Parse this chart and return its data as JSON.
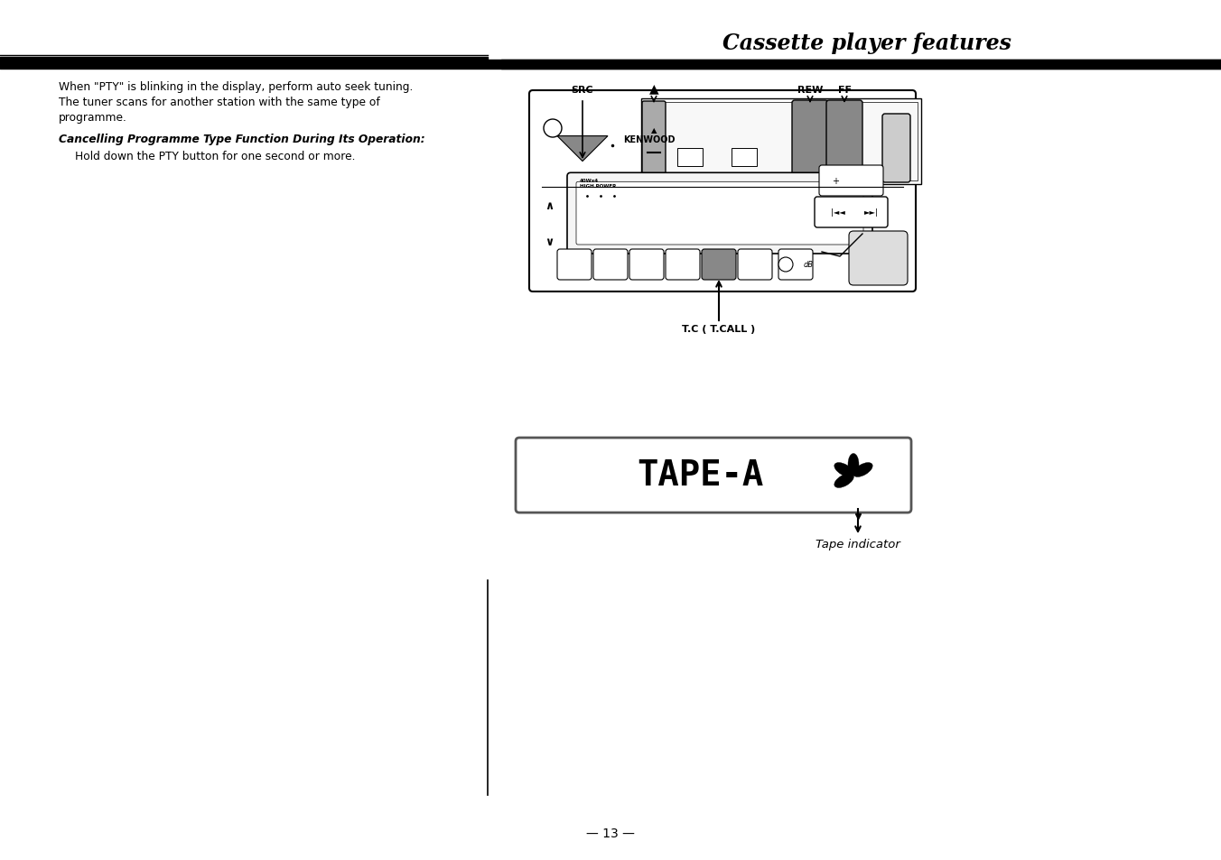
{
  "bg_color": "#ffffff",
  "text_color": "#000000",
  "title": "Cassette player features",
  "body_text_1_line1": "When \"PTY\" is blinking in the display, perform auto seek tuning.",
  "body_text_1_line2": "The tuner scans for another station with the same type of",
  "body_text_1_line3": "programme.",
  "bold_heading": "Cancelling Programme Type Function During Its Operation:",
  "body_text_2": "Hold down the PTY button for one second or more.",
  "page_number": "— 13 —",
  "tape_indicator_label": "Tape indicator",
  "src_label": "SRC",
  "rew_label": "REW",
  "ff_label": "FF",
  "tcall_label": "T.C ( T.CALL )"
}
